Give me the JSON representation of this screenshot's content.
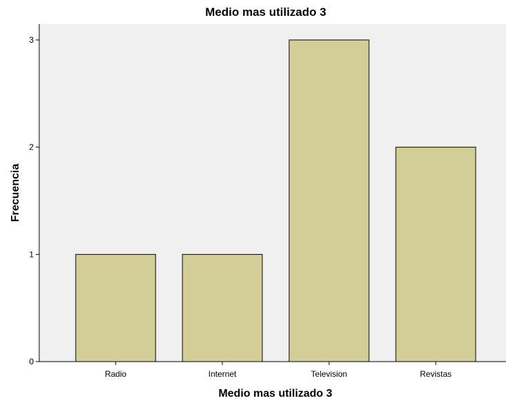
{
  "chart_data": {
    "type": "bar",
    "title": "Medio mas utilizado 3",
    "xlabel": "Medio mas utilizado 3",
    "ylabel": "Frecuencia",
    "categories": [
      "Radio",
      "Internet",
      "Television",
      "Revistas"
    ],
    "values": [
      1,
      1,
      3,
      2
    ],
    "ylim": [
      0,
      3
    ],
    "yticks": [
      "0",
      "1",
      "2",
      "3"
    ],
    "grid": false,
    "legend": "none"
  },
  "colors": {
    "plot_background": "#f0f0f0",
    "bar_fill": "#d3ce97",
    "bar_stroke": "#000000",
    "axis": "#000000"
  }
}
